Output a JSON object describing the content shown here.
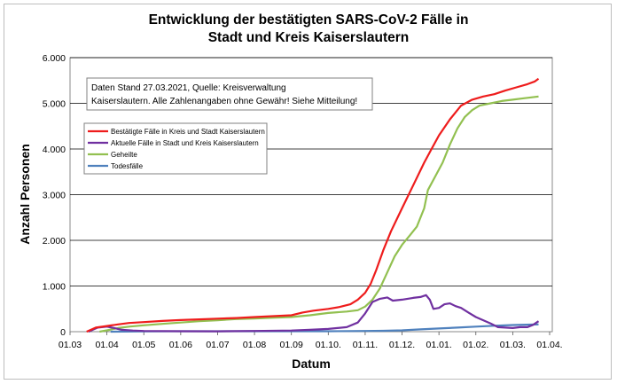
{
  "chart_data": {
    "type": "line",
    "title_lines": [
      "Entwicklung der bestätigten SARS-CoV-2 Fälle in",
      "Stadt und Kreis Kaiserslautern"
    ],
    "xlabel": "Datum",
    "ylabel": "Anzahl Personen",
    "x_ticks": [
      "01.03",
      "01.04",
      "01.05",
      "01.06",
      "01.07",
      "01.08",
      "01.09",
      "01.10.",
      "01.11.",
      "01.12.",
      "01.01.",
      "01.02.",
      "01.03.",
      "01.04."
    ],
    "y_ticks": [
      "0",
      "1.000",
      "2.000",
      "3.000",
      "4.000",
      "5.000",
      "6.000"
    ],
    "ylim": [
      0,
      6000
    ],
    "grid": "horizontal",
    "note_lines": [
      "Daten Stand 27.03.2021, Quelle: Kreisverwaltung",
      "Kaiserslautern. Alle Zahlenangaben ohne Gewähr! Siehe Mitteilung!"
    ],
    "legend_position": "upper-left",
    "x_unit": "month index (0 = 01.03.2020, 13 = 01.04.2021)",
    "series": [
      {
        "name": "Bestätigte Fälle in Kreis und Stadt Kaiserslautern",
        "color": "#ee1c1c",
        "points": [
          [
            0.45,
            0
          ],
          [
            0.7,
            90
          ],
          [
            1.0,
            125
          ],
          [
            1.3,
            160
          ],
          [
            1.6,
            190
          ],
          [
            2.0,
            210
          ],
          [
            2.5,
            235
          ],
          [
            3.0,
            255
          ],
          [
            3.5,
            270
          ],
          [
            4.0,
            285
          ],
          [
            4.5,
            300
          ],
          [
            5.0,
            320
          ],
          [
            5.5,
            340
          ],
          [
            6.0,
            360
          ],
          [
            6.3,
            420
          ],
          [
            6.6,
            460
          ],
          [
            7.0,
            500
          ],
          [
            7.3,
            540
          ],
          [
            7.6,
            600
          ],
          [
            7.8,
            700
          ],
          [
            8.0,
            850
          ],
          [
            8.15,
            1050
          ],
          [
            8.3,
            1350
          ],
          [
            8.5,
            1800
          ],
          [
            8.7,
            2200
          ],
          [
            9.0,
            2700
          ],
          [
            9.3,
            3200
          ],
          [
            9.6,
            3700
          ],
          [
            9.8,
            4000
          ],
          [
            10.0,
            4300
          ],
          [
            10.3,
            4650
          ],
          [
            10.6,
            4950
          ],
          [
            10.9,
            5080
          ],
          [
            11.2,
            5150
          ],
          [
            11.5,
            5200
          ],
          [
            11.8,
            5280
          ],
          [
            12.1,
            5350
          ],
          [
            12.4,
            5420
          ],
          [
            12.6,
            5480
          ],
          [
            12.7,
            5540
          ]
        ]
      },
      {
        "name": "Aktuelle Fälle in Stadt und Kreis Kaiserslautern",
        "color": "#7030a0",
        "points": [
          [
            0.5,
            0
          ],
          [
            0.75,
            90
          ],
          [
            1.0,
            110
          ],
          [
            1.2,
            80
          ],
          [
            1.4,
            40
          ],
          [
            1.7,
            25
          ],
          [
            2.0,
            15
          ],
          [
            3.0,
            10
          ],
          [
            4.0,
            8
          ],
          [
            5.0,
            15
          ],
          [
            6.0,
            25
          ],
          [
            6.5,
            40
          ],
          [
            7.0,
            60
          ],
          [
            7.5,
            100
          ],
          [
            7.8,
            200
          ],
          [
            8.0,
            400
          ],
          [
            8.2,
            650
          ],
          [
            8.4,
            720
          ],
          [
            8.6,
            750
          ],
          [
            8.75,
            680
          ],
          [
            9.0,
            700
          ],
          [
            9.3,
            740
          ],
          [
            9.5,
            760
          ],
          [
            9.65,
            800
          ],
          [
            9.75,
            700
          ],
          [
            9.85,
            500
          ],
          [
            10.0,
            520
          ],
          [
            10.15,
            600
          ],
          [
            10.3,
            620
          ],
          [
            10.45,
            560
          ],
          [
            10.6,
            520
          ],
          [
            10.8,
            420
          ],
          [
            11.0,
            320
          ],
          [
            11.2,
            250
          ],
          [
            11.4,
            180
          ],
          [
            11.6,
            100
          ],
          [
            11.8,
            90
          ],
          [
            12.0,
            80
          ],
          [
            12.2,
            100
          ],
          [
            12.4,
            100
          ],
          [
            12.55,
            150
          ],
          [
            12.7,
            230
          ]
        ]
      },
      {
        "name": "Geheilte",
        "color": "#92c050",
        "points": [
          [
            0.8,
            0
          ],
          [
            1.0,
            30
          ],
          [
            1.3,
            80
          ],
          [
            1.6,
            110
          ],
          [
            2.0,
            140
          ],
          [
            2.5,
            170
          ],
          [
            3.0,
            200
          ],
          [
            3.5,
            230
          ],
          [
            4.0,
            250
          ],
          [
            4.5,
            275
          ],
          [
            5.0,
            290
          ],
          [
            5.5,
            305
          ],
          [
            6.0,
            320
          ],
          [
            6.5,
            360
          ],
          [
            7.0,
            410
          ],
          [
            7.5,
            440
          ],
          [
            7.8,
            470
          ],
          [
            8.0,
            550
          ],
          [
            8.2,
            700
          ],
          [
            8.4,
            950
          ],
          [
            8.6,
            1300
          ],
          [
            8.8,
            1650
          ],
          [
            9.0,
            1900
          ],
          [
            9.2,
            2100
          ],
          [
            9.4,
            2300
          ],
          [
            9.6,
            2700
          ],
          [
            9.7,
            3100
          ],
          [
            9.9,
            3400
          ],
          [
            10.1,
            3700
          ],
          [
            10.3,
            4100
          ],
          [
            10.5,
            4450
          ],
          [
            10.7,
            4700
          ],
          [
            10.9,
            4850
          ],
          [
            11.1,
            4950
          ],
          [
            11.4,
            5000
          ],
          [
            11.7,
            5050
          ],
          [
            12.0,
            5080
          ],
          [
            12.3,
            5110
          ],
          [
            12.6,
            5140
          ],
          [
            12.7,
            5150
          ]
        ]
      },
      {
        "name": "Todesfälle",
        "color": "#4f81bd",
        "points": [
          [
            1.1,
            0
          ],
          [
            2.0,
            5
          ],
          [
            3.0,
            10
          ],
          [
            4.0,
            10
          ],
          [
            5.0,
            10
          ],
          [
            6.0,
            10
          ],
          [
            7.0,
            10
          ],
          [
            8.0,
            15
          ],
          [
            8.5,
            20
          ],
          [
            9.0,
            30
          ],
          [
            9.5,
            50
          ],
          [
            10.0,
            70
          ],
          [
            10.5,
            90
          ],
          [
            11.0,
            110
          ],
          [
            11.5,
            130
          ],
          [
            12.0,
            145
          ],
          [
            12.5,
            155
          ],
          [
            12.7,
            160
          ]
        ]
      }
    ]
  }
}
